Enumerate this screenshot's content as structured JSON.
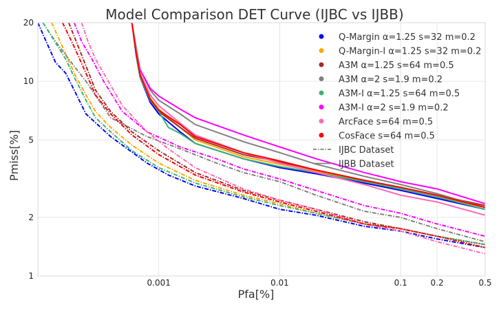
{
  "chart_data": {
    "type": "line",
    "title": "Model Comparison DET Curve (IJBC vs IJBB)",
    "xlabel": "Pfa[%]",
    "ylabel": "Pmiss[%]",
    "xscale": "log",
    "yscale": "log",
    "xlim": [
      0.0001,
      0.5
    ],
    "ylim": [
      1,
      20
    ],
    "xticks": [
      {
        "value": 0.001,
        "label": "0.001"
      },
      {
        "value": 0.01,
        "label": "0.01"
      },
      {
        "value": 0.1,
        "label": "0.1"
      },
      {
        "value": 0.2,
        "label": "0.2"
      },
      {
        "value": 0.5,
        "label": "0.5"
      }
    ],
    "yticks": [
      {
        "value": 1,
        "label": "1"
      },
      {
        "value": 2,
        "label": "2"
      },
      {
        "value": 5,
        "label": "5"
      },
      {
        "value": 10,
        "label": "10"
      },
      {
        "value": 20,
        "label": "20"
      }
    ],
    "grid": true,
    "legend_position": "top-right",
    "linestyle_legend": [
      {
        "label": "IJBC Dataset",
        "style": "dashdot"
      },
      {
        "label": "IJBB Dataset",
        "style": "solid"
      }
    ],
    "series": [
      {
        "name": "Q-Margin α=1.25 s=32 m=0.2",
        "color": "#0000ff",
        "ijbc": [
          [
            0.0001,
            20
          ],
          [
            0.00012,
            15.5
          ],
          [
            0.00014,
            12.5
          ],
          [
            0.00017,
            11
          ],
          [
            0.0002,
            9
          ],
          [
            0.00025,
            6.8
          ],
          [
            0.0004,
            5.2
          ],
          [
            0.0008,
            3.8
          ],
          [
            0.0012,
            3.3
          ],
          [
            0.002,
            2.9
          ],
          [
            0.005,
            2.5
          ],
          [
            0.01,
            2.2
          ],
          [
            0.02,
            2.05
          ],
          [
            0.05,
            1.8
          ],
          [
            0.1,
            1.7
          ],
          [
            0.2,
            1.55
          ],
          [
            0.5,
            1.4
          ]
        ],
        "ijbb": [
          [
            0.0006,
            20
          ],
          [
            0.00065,
            14
          ],
          [
            0.0007,
            10.5
          ],
          [
            0.00085,
            7.8
          ],
          [
            0.001,
            6.8
          ],
          [
            0.0015,
            5.5
          ],
          [
            0.002,
            4.8
          ],
          [
            0.005,
            4
          ],
          [
            0.01,
            3.6
          ],
          [
            0.02,
            3.35
          ],
          [
            0.05,
            3
          ],
          [
            0.1,
            2.75
          ],
          [
            0.2,
            2.5
          ],
          [
            0.5,
            2.2
          ]
        ]
      },
      {
        "name": "Q-Margin-I α=1.25 s=32 m=0.2",
        "color": "#ffa500",
        "ijbc": [
          [
            0.00013,
            20
          ],
          [
            0.00016,
            15
          ],
          [
            0.0002,
            11
          ],
          [
            0.00025,
            8.5
          ],
          [
            0.0003,
            7
          ],
          [
            0.0004,
            5.8
          ],
          [
            0.0006,
            4.7
          ],
          [
            0.001,
            3.8
          ],
          [
            0.002,
            3.1
          ],
          [
            0.005,
            2.6
          ],
          [
            0.01,
            2.35
          ],
          [
            0.02,
            2.1
          ],
          [
            0.05,
            1.85
          ],
          [
            0.1,
            1.75
          ],
          [
            0.2,
            1.6
          ],
          [
            0.5,
            1.45
          ]
        ],
        "ijbb": [
          [
            0.0006,
            20
          ],
          [
            0.00065,
            14.5
          ],
          [
            0.0007,
            11
          ],
          [
            0.00085,
            8.2
          ],
          [
            0.001,
            7.2
          ],
          [
            0.0015,
            5.8
          ],
          [
            0.002,
            5
          ],
          [
            0.005,
            4.1
          ],
          [
            0.01,
            3.75
          ],
          [
            0.02,
            3.45
          ],
          [
            0.05,
            3.05
          ],
          [
            0.1,
            2.8
          ],
          [
            0.2,
            2.55
          ],
          [
            0.5,
            2.25
          ]
        ]
      },
      {
        "name": "A3M α=1.25 s=64 m=0.5",
        "color": "#a52a2a",
        "ijbc": [
          [
            0.00018,
            20
          ],
          [
            0.0002,
            17
          ],
          [
            0.00025,
            12
          ],
          [
            0.0003,
            9
          ],
          [
            0.0004,
            7
          ],
          [
            0.0006,
            5.5
          ],
          [
            0.001,
            4.4
          ],
          [
            0.002,
            3.4
          ],
          [
            0.005,
            2.75
          ],
          [
            0.01,
            2.45
          ],
          [
            0.02,
            2.2
          ],
          [
            0.05,
            1.9
          ],
          [
            0.1,
            1.75
          ],
          [
            0.2,
            1.6
          ],
          [
            0.5,
            1.45
          ]
        ],
        "ijbb": [
          [
            0.0006,
            20
          ],
          [
            0.00065,
            14
          ],
          [
            0.0007,
            10.8
          ],
          [
            0.00085,
            8
          ],
          [
            0.001,
            7
          ],
          [
            0.0015,
            5.8
          ],
          [
            0.002,
            5.1
          ],
          [
            0.005,
            4.2
          ],
          [
            0.01,
            3.85
          ],
          [
            0.02,
            3.5
          ],
          [
            0.05,
            3.1
          ],
          [
            0.1,
            2.85
          ],
          [
            0.2,
            2.6
          ],
          [
            0.5,
            2.3
          ]
        ]
      },
      {
        "name": "A3M α=2 s=1.9 m=0.2",
        "color": "#808080",
        "ijbc": [
          [
            0.00011,
            20
          ],
          [
            0.00014,
            16
          ],
          [
            0.00018,
            13
          ],
          [
            0.00025,
            10
          ],
          [
            0.0004,
            6.5
          ],
          [
            0.0008,
            5.2
          ],
          [
            0.0015,
            4.5
          ],
          [
            0.003,
            3.8
          ],
          [
            0.005,
            3.4
          ],
          [
            0.01,
            3.05
          ],
          [
            0.02,
            2.6
          ],
          [
            0.05,
            2.15
          ],
          [
            0.1,
            2
          ],
          [
            0.2,
            1.75
          ],
          [
            0.5,
            1.5
          ]
        ],
        "ijbb": [
          [
            0.0006,
            20
          ],
          [
            0.00065,
            15
          ],
          [
            0.0007,
            11.5
          ],
          [
            0.00085,
            9
          ],
          [
            0.001,
            8
          ],
          [
            0.0015,
            6.8
          ],
          [
            0.002,
            6
          ],
          [
            0.005,
            4.9
          ],
          [
            0.01,
            4.3
          ],
          [
            0.02,
            3.75
          ],
          [
            0.05,
            3.25
          ],
          [
            0.1,
            2.95
          ],
          [
            0.2,
            2.65
          ],
          [
            0.5,
            2.25
          ]
        ]
      },
      {
        "name": "A3M-I α=1.25 s=64 m=0.5",
        "color": "#3cb371",
        "ijbc": [
          [
            0.00011,
            20
          ],
          [
            0.00013,
            17
          ],
          [
            0.00017,
            13
          ],
          [
            0.0002,
            10.5
          ],
          [
            0.00025,
            8
          ],
          [
            0.0003,
            6.5
          ],
          [
            0.0004,
            5.5
          ],
          [
            0.0006,
            4.4
          ],
          [
            0.001,
            3.6
          ],
          [
            0.002,
            3
          ],
          [
            0.005,
            2.55
          ],
          [
            0.01,
            2.3
          ],
          [
            0.02,
            2.1
          ],
          [
            0.05,
            1.85
          ],
          [
            0.1,
            1.75
          ],
          [
            0.2,
            1.6
          ],
          [
            0.5,
            1.45
          ]
        ],
        "ijbb": [
          [
            0.0006,
            20
          ],
          [
            0.00065,
            13.5
          ],
          [
            0.0007,
            10.5
          ],
          [
            0.00085,
            8
          ],
          [
            0.001,
            7
          ],
          [
            0.0012,
            5.8
          ],
          [
            0.0015,
            5.4
          ],
          [
            0.002,
            4.8
          ],
          [
            0.005,
            4
          ],
          [
            0.01,
            3.65
          ],
          [
            0.02,
            3.4
          ],
          [
            0.05,
            3.05
          ],
          [
            0.1,
            2.8
          ],
          [
            0.2,
            2.55
          ],
          [
            0.5,
            2.2
          ]
        ]
      },
      {
        "name": "A3M-I α=2 s=1.9 m=0.2",
        "color": "#ff00ff",
        "ijbc": [
          [
            0.0002,
            20
          ],
          [
            0.00023,
            16
          ],
          [
            0.00028,
            13
          ],
          [
            0.00035,
            10
          ],
          [
            0.0005,
            7
          ],
          [
            0.0008,
            5.5
          ],
          [
            0.0015,
            4.6
          ],
          [
            0.003,
            4
          ],
          [
            0.005,
            3.55
          ],
          [
            0.01,
            3.15
          ],
          [
            0.02,
            2.75
          ],
          [
            0.05,
            2.3
          ],
          [
            0.1,
            2.1
          ],
          [
            0.2,
            1.85
          ],
          [
            0.5,
            1.6
          ]
        ],
        "ijbb": [
          [
            0.0006,
            20
          ],
          [
            0.00065,
            14
          ],
          [
            0.0007,
            11.5
          ],
          [
            0.00085,
            9.2
          ],
          [
            0.001,
            8.4
          ],
          [
            0.0015,
            7.2
          ],
          [
            0.002,
            6.5
          ],
          [
            0.005,
            5.3
          ],
          [
            0.01,
            4.6
          ],
          [
            0.02,
            4
          ],
          [
            0.05,
            3.4
          ],
          [
            0.1,
            3.05
          ],
          [
            0.2,
            2.8
          ],
          [
            0.5,
            2.35
          ]
        ]
      },
      {
        "name": "ArcFace s=64 m=0.5",
        "color": "#ff69b4",
        "ijbc": [
          [
            0.00023,
            20
          ],
          [
            0.00026,
            16
          ],
          [
            0.0003,
            13
          ],
          [
            0.00035,
            11
          ],
          [
            0.0005,
            7.5
          ],
          [
            0.0008,
            5.5
          ],
          [
            0.0012,
            4.5
          ],
          [
            0.002,
            3.6
          ],
          [
            0.005,
            2.8
          ],
          [
            0.01,
            2.45
          ],
          [
            0.02,
            2.2
          ],
          [
            0.05,
            1.85
          ],
          [
            0.1,
            1.7
          ],
          [
            0.2,
            1.5
          ],
          [
            0.5,
            1.3
          ]
        ],
        "ijbb": [
          [
            0.0006,
            20
          ],
          [
            0.00065,
            14.5
          ],
          [
            0.0007,
            11
          ],
          [
            0.00085,
            8.5
          ],
          [
            0.001,
            7.5
          ],
          [
            0.0015,
            6.1
          ],
          [
            0.002,
            5.3
          ],
          [
            0.005,
            4.3
          ],
          [
            0.01,
            3.8
          ],
          [
            0.02,
            3.4
          ],
          [
            0.05,
            2.95
          ],
          [
            0.1,
            2.6
          ],
          [
            0.2,
            2.4
          ],
          [
            0.5,
            2.05
          ]
        ]
      },
      {
        "name": "CosFace s=64 m=0.5",
        "color": "#ff0000",
        "ijbc": [
          [
            0.00016,
            20
          ],
          [
            0.0002,
            15
          ],
          [
            0.00025,
            11
          ],
          [
            0.0003,
            8.5
          ],
          [
            0.0004,
            6.8
          ],
          [
            0.0006,
            5.3
          ],
          [
            0.001,
            4.2
          ],
          [
            0.002,
            3.3
          ],
          [
            0.005,
            2.7
          ],
          [
            0.01,
            2.4
          ],
          [
            0.02,
            2.15
          ],
          [
            0.05,
            1.85
          ],
          [
            0.1,
            1.75
          ],
          [
            0.2,
            1.6
          ],
          [
            0.5,
            1.4
          ]
        ],
        "ijbb": [
          [
            0.0006,
            20
          ],
          [
            0.00065,
            14
          ],
          [
            0.0007,
            10.8
          ],
          [
            0.00085,
            8.1
          ],
          [
            0.001,
            7.1
          ],
          [
            0.0015,
            6
          ],
          [
            0.002,
            5.2
          ],
          [
            0.005,
            4.3
          ],
          [
            0.01,
            3.9
          ],
          [
            0.02,
            3.5
          ],
          [
            0.05,
            3.1
          ],
          [
            0.1,
            2.85
          ],
          [
            0.2,
            2.6
          ],
          [
            0.5,
            2.25
          ]
        ]
      }
    ]
  }
}
